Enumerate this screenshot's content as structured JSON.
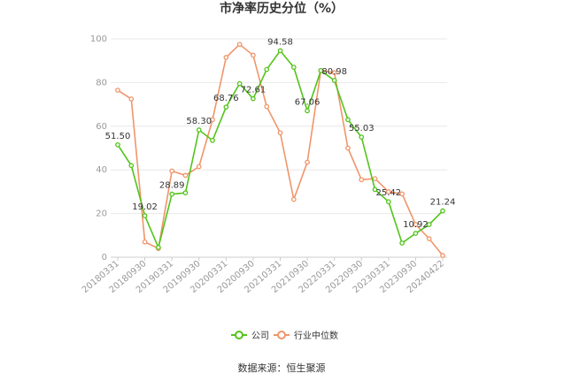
{
  "chart_data": {
    "type": "line",
    "title": "市净率历史分位（%）",
    "source": "数据来源：恒生聚源",
    "ylim": [
      0,
      100
    ],
    "yticks": [
      0,
      20,
      40,
      60,
      80,
      100
    ],
    "xticks": [
      "20180331",
      "20180930",
      "20190331",
      "20190930",
      "20200331",
      "20200930",
      "20210331",
      "20210930",
      "20220331",
      "20220930",
      "20230331",
      "20230930",
      "20240422"
    ],
    "legend": {
      "position": "bottom"
    },
    "grid": true,
    "series": [
      {
        "name": "公司",
        "color": "#52c41a",
        "values": [
          51.5,
          42.0,
          19.02,
          4.5,
          28.89,
          29.5,
          58.3,
          53.5,
          68.76,
          79.5,
          72.61,
          86.0,
          94.58,
          87.0,
          67.06,
          85.5,
          80.98,
          63.0,
          55.03,
          31.0,
          25.42,
          6.5,
          10.92,
          15.0,
          21.24
        ],
        "labels": {
          "0": "51.50",
          "2": "19.02",
          "4": "28.89",
          "6": "58.30",
          "8": "68.76",
          "10": "72.61",
          "12": "94.58",
          "14": "67.06",
          "16": "80.98",
          "18": "55.03",
          "20": "25.42",
          "22": "10.92",
          "24": "21.24"
        }
      },
      {
        "name": "行业中位数",
        "color": "#f0956a",
        "values": [
          76.5,
          72.5,
          7.0,
          4.0,
          39.5,
          37.5,
          41.5,
          63.0,
          91.5,
          97.5,
          92.5,
          69.0,
          57.0,
          26.5,
          43.5,
          85.5,
          84.5,
          50.0,
          35.5,
          36.0,
          30.0,
          29.0,
          15.0,
          8.5,
          0.8
        ]
      }
    ]
  }
}
